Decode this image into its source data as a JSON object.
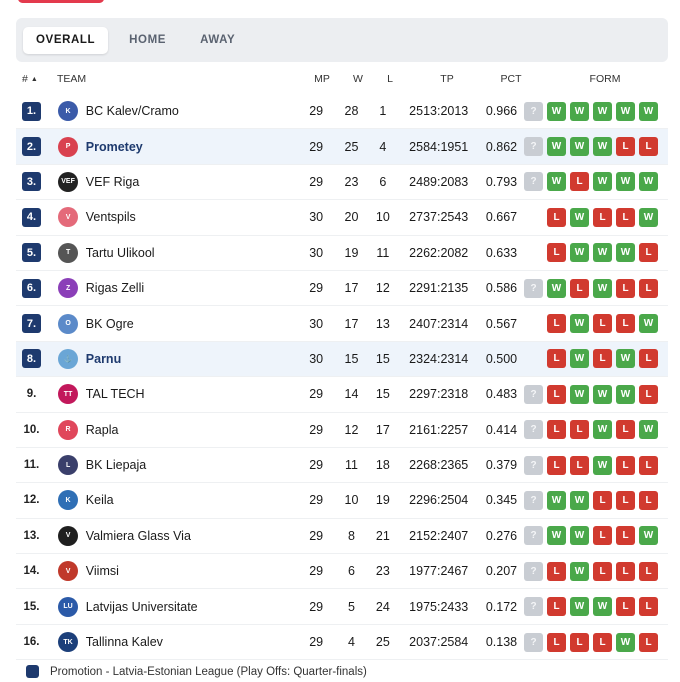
{
  "tabs": [
    "OVERALL",
    "HOME",
    "AWAY"
  ],
  "headers": {
    "rank": "#",
    "team": "TEAM",
    "mp": "MP",
    "w": "W",
    "l": "L",
    "tp": "TP",
    "pct": "PCT",
    "form": "FORM"
  },
  "sort_indicator": "▲",
  "colors": {
    "promotion": "#1e3a6e",
    "win": "#4aa84a",
    "loss": "#d13a2f",
    "upcoming": "#c9cdd3",
    "highlight": "#eef4fb"
  },
  "standings": [
    {
      "rank": "1.",
      "team": "BC Kalev/Cramo",
      "logo": "kalev-logo",
      "mp": "29",
      "w": "28",
      "l": "1",
      "tp": "2513:2013",
      "pct": "0.966",
      "form": [
        "?",
        "W",
        "W",
        "W",
        "W",
        "W"
      ],
      "promotion": true,
      "highlight": false,
      "bold": false
    },
    {
      "rank": "2.",
      "team": "Prometey",
      "logo": "prometey-logo",
      "mp": "29",
      "w": "25",
      "l": "4",
      "tp": "2584:1951",
      "pct": "0.862",
      "form": [
        "?",
        "W",
        "W",
        "W",
        "L",
        "L"
      ],
      "promotion": true,
      "highlight": true,
      "bold": true
    },
    {
      "rank": "3.",
      "team": "VEF Riga",
      "logo": "vef-logo",
      "mp": "29",
      "w": "23",
      "l": "6",
      "tp": "2489:2083",
      "pct": "0.793",
      "form": [
        "?",
        "W",
        "L",
        "W",
        "W",
        "W"
      ],
      "promotion": true,
      "highlight": false,
      "bold": false
    },
    {
      "rank": "4.",
      "team": "Ventspils",
      "logo": "ventspils-logo",
      "mp": "30",
      "w": "20",
      "l": "10",
      "tp": "2737:2543",
      "pct": "0.667",
      "form": [
        "",
        "L",
        "W",
        "L",
        "L",
        "W"
      ],
      "promotion": true,
      "highlight": false,
      "bold": false
    },
    {
      "rank": "5.",
      "team": "Tartu Ulikool",
      "logo": "tartu-logo",
      "mp": "30",
      "w": "19",
      "l": "11",
      "tp": "2262:2082",
      "pct": "0.633",
      "form": [
        "",
        "L",
        "W",
        "W",
        "W",
        "L"
      ],
      "promotion": true,
      "highlight": false,
      "bold": false
    },
    {
      "rank": "6.",
      "team": "Rigas Zelli",
      "logo": "zelli-logo",
      "mp": "29",
      "w": "17",
      "l": "12",
      "tp": "2291:2135",
      "pct": "0.586",
      "form": [
        "?",
        "W",
        "L",
        "W",
        "L",
        "L"
      ],
      "promotion": true,
      "highlight": false,
      "bold": false
    },
    {
      "rank": "7.",
      "team": "BK Ogre",
      "logo": "ogre-logo",
      "mp": "30",
      "w": "17",
      "l": "13",
      "tp": "2407:2314",
      "pct": "0.567",
      "form": [
        "",
        "L",
        "W",
        "L",
        "L",
        "W"
      ],
      "promotion": true,
      "highlight": false,
      "bold": false
    },
    {
      "rank": "8.",
      "team": "Parnu",
      "logo": "parnu-logo",
      "mp": "30",
      "w": "15",
      "l": "15",
      "tp": "2324:2314",
      "pct": "0.500",
      "form": [
        "",
        "L",
        "W",
        "L",
        "W",
        "L"
      ],
      "promotion": true,
      "highlight": true,
      "bold": true
    },
    {
      "rank": "9.",
      "team": "TAL TECH",
      "logo": "taltech-logo",
      "mp": "29",
      "w": "14",
      "l": "15",
      "tp": "2297:2318",
      "pct": "0.483",
      "form": [
        "?",
        "L",
        "W",
        "W",
        "W",
        "L"
      ],
      "promotion": false,
      "highlight": false,
      "bold": false
    },
    {
      "rank": "10.",
      "team": "Rapla",
      "logo": "rapla-logo",
      "mp": "29",
      "w": "12",
      "l": "17",
      "tp": "2161:2257",
      "pct": "0.414",
      "form": [
        "?",
        "L",
        "L",
        "W",
        "L",
        "W"
      ],
      "promotion": false,
      "highlight": false,
      "bold": false
    },
    {
      "rank": "11.",
      "team": "BK Liepaja",
      "logo": "liepaja-logo",
      "mp": "29",
      "w": "11",
      "l": "18",
      "tp": "2268:2365",
      "pct": "0.379",
      "form": [
        "?",
        "L",
        "L",
        "W",
        "L",
        "L"
      ],
      "promotion": false,
      "highlight": false,
      "bold": false
    },
    {
      "rank": "12.",
      "team": "Keila",
      "logo": "keila-logo",
      "mp": "29",
      "w": "10",
      "l": "19",
      "tp": "2296:2504",
      "pct": "0.345",
      "form": [
        "?",
        "W",
        "W",
        "L",
        "L",
        "L"
      ],
      "promotion": false,
      "highlight": false,
      "bold": false
    },
    {
      "rank": "13.",
      "team": "Valmiera Glass Via",
      "logo": "valmiera-logo",
      "mp": "29",
      "w": "8",
      "l": "21",
      "tp": "2152:2407",
      "pct": "0.276",
      "form": [
        "?",
        "W",
        "W",
        "L",
        "L",
        "W"
      ],
      "promotion": false,
      "highlight": false,
      "bold": false
    },
    {
      "rank": "14.",
      "team": "Viimsi",
      "logo": "viimsi-logo",
      "mp": "29",
      "w": "6",
      "l": "23",
      "tp": "1977:2467",
      "pct": "0.207",
      "form": [
        "?",
        "L",
        "W",
        "L",
        "L",
        "L"
      ],
      "promotion": false,
      "highlight": false,
      "bold": false
    },
    {
      "rank": "15.",
      "team": "Latvijas Universitate",
      "logo": "lu-logo",
      "mp": "29",
      "w": "5",
      "l": "24",
      "tp": "1975:2433",
      "pct": "0.172",
      "form": [
        "?",
        "L",
        "W",
        "W",
        "L",
        "L"
      ],
      "promotion": false,
      "highlight": false,
      "bold": false
    },
    {
      "rank": "16.",
      "team": "Tallinna Kalev",
      "logo": "tallinna-logo",
      "mp": "29",
      "w": "4",
      "l": "25",
      "tp": "2037:2584",
      "pct": "0.138",
      "form": [
        "?",
        "L",
        "L",
        "L",
        "W",
        "L"
      ],
      "promotion": false,
      "highlight": false,
      "bold": false
    }
  ],
  "logo_text": {
    "kalev-logo": "K",
    "prometey-logo": "P",
    "vef-logo": "VEF",
    "ventspils-logo": "V",
    "tartu-logo": "T",
    "zelli-logo": "Z",
    "ogre-logo": "O",
    "parnu-logo": "⚓",
    "taltech-logo": "TT",
    "rapla-logo": "R",
    "liepaja-logo": "L",
    "keila-logo": "K",
    "valmiera-logo": "V",
    "viimsi-logo": "V",
    "lu-logo": "LU",
    "tallinna-logo": "TK"
  },
  "logo_colors": {
    "kalev-logo": "#3b5ba9",
    "prometey-logo": "#d9414f",
    "vef-logo": "#222222",
    "ventspils-logo": "#e46a7a",
    "tartu-logo": "#555555",
    "zelli-logo": "#8b3fb8",
    "ogre-logo": "#5b8ac9",
    "parnu-logo": "#6aa6d6",
    "taltech-logo": "#c2185b",
    "rapla-logo": "#e0475b",
    "liepaja-logo": "#3a3f6b",
    "keila-logo": "#2f6fb5",
    "valmiera-logo": "#1f1f1f",
    "viimsi-logo": "#c0392b",
    "lu-logo": "#2b5aa8",
    "tallinna-logo": "#1c3f7a"
  },
  "legend": {
    "label": "Promotion - Latvia-Estonian League (Play Offs: Quarter-finals)"
  }
}
